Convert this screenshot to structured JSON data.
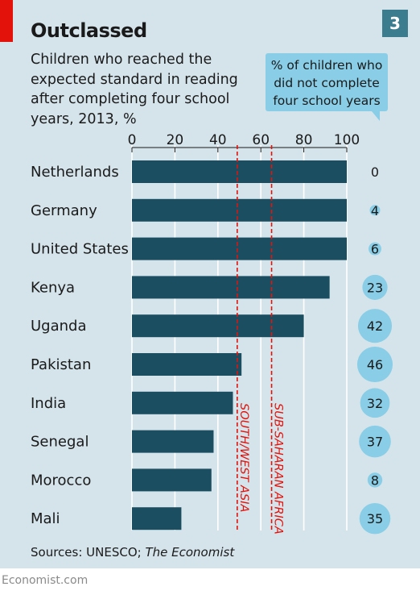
{
  "header": {
    "title": "Outclassed",
    "chart_number": "3",
    "subtitle": "Children who reached the expected standard in reading after completing four school years, 2013, %",
    "bubble_header": "% of children who did not complete four school years"
  },
  "footer": {
    "source_label": "Sources: UNESCO;",
    "source_italic": "The Economist",
    "site": "Economist.com"
  },
  "colors": {
    "background": "#d5e4eb",
    "bar": "#1c4e62",
    "bubble": "#89cde6",
    "reference_line": "#e3120b",
    "accent": "#e3120b",
    "chart_number_bg": "#3b7d8e"
  },
  "chart_data": {
    "type": "bar",
    "orientation": "horizontal",
    "categories": [
      "Netherlands",
      "Germany",
      "United States",
      "Kenya",
      "Uganda",
      "Pakistan",
      "India",
      "Senegal",
      "Morocco",
      "Mali"
    ],
    "series": [
      {
        "values": [
          100,
          100,
          100,
          92,
          80,
          51,
          47,
          38,
          37,
          23
        ]
      }
    ],
    "bubbles": {
      "values": [
        0,
        4,
        6,
        23,
        42,
        46,
        32,
        37,
        8,
        35
      ]
    },
    "reference_lines": [
      {
        "label": "SOUTH/WEST ASIA",
        "value": 49
      },
      {
        "label": "SUB-SAHARAN AFRICA",
        "value": 65
      }
    ],
    "x_ticks": [
      "0",
      "20",
      "40",
      "60",
      "80",
      "100"
    ],
    "xlim": [
      0,
      100
    ],
    "grid": true
  }
}
